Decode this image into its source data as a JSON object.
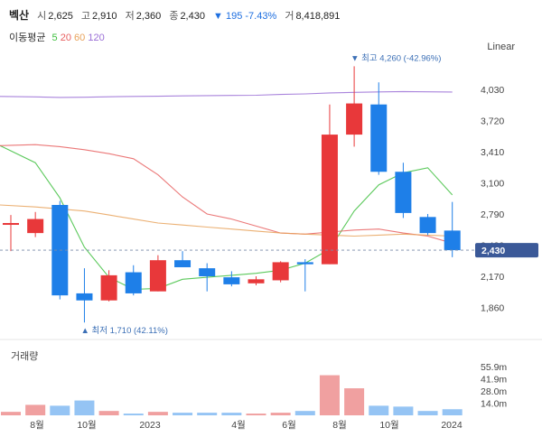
{
  "header": {
    "name": "벡산",
    "open_label": "시",
    "open": "2,625",
    "high_label": "고",
    "high": "2,910",
    "low_label": "저",
    "low": "2,360",
    "close_label": "종",
    "close": "2,430",
    "change": "▼ 195 -7.43%",
    "volume_label": "거",
    "volume": "8,418,891"
  },
  "ma_legend": {
    "title": "이동평균",
    "periods": [
      "5",
      "20",
      "60",
      "120"
    ],
    "colors": [
      "#3fbf3f",
      "#e86060",
      "#e8a25a",
      "#9a6fd6"
    ]
  },
  "scale": "Linear",
  "volume_title": "거래량",
  "chart_data": {
    "type": "candlestick",
    "colors": {
      "up": "#e8383a",
      "down": "#1e7fe8"
    },
    "price_axis": {
      "ticks": [
        1860,
        2170,
        2480,
        2790,
        3100,
        3410,
        3720,
        4030
      ],
      "labels": [
        "1,860",
        "2,170",
        "2,480",
        "2,790",
        "3,100",
        "3,410",
        "3,720",
        "4,030"
      ]
    },
    "current_price": {
      "value": 2430,
      "label": "2,430"
    },
    "annotations": {
      "max": {
        "value": 4260,
        "label": "▼ 최고 4,260 (-42.96%)"
      },
      "min": {
        "value": 1710,
        "label": "▲ 최저 1,710 (42.11%)"
      }
    },
    "x_labels": [
      "8월",
      "10월",
      "2023",
      "4월",
      "6월",
      "8월",
      "10월",
      "2024"
    ],
    "candles": [
      {
        "o": 2700,
        "h": 2780,
        "l": 2420,
        "c": 2700
      },
      {
        "o": 2600,
        "h": 2810,
        "l": 2560,
        "c": 2740
      },
      {
        "o": 2880,
        "h": 2920,
        "l": 1940,
        "c": 1980
      },
      {
        "o": 2000,
        "h": 2250,
        "l": 1710,
        "c": 1930
      },
      {
        "o": 1930,
        "h": 2230,
        "l": 1920,
        "c": 2180
      },
      {
        "o": 2210,
        "h": 2280,
        "l": 1980,
        "c": 2000
      },
      {
        "o": 2020,
        "h": 2380,
        "l": 2020,
        "c": 2330
      },
      {
        "o": 2330,
        "h": 2420,
        "l": 2260,
        "c": 2260
      },
      {
        "o": 2250,
        "h": 2300,
        "l": 2020,
        "c": 2170
      },
      {
        "o": 2160,
        "h": 2220,
        "l": 2070,
        "c": 2090
      },
      {
        "o": 2100,
        "h": 2170,
        "l": 2080,
        "c": 2140
      },
      {
        "o": 2130,
        "h": 2320,
        "l": 2110,
        "c": 2310
      },
      {
        "o": 2310,
        "h": 2340,
        "l": 2020,
        "c": 2290
      },
      {
        "o": 2290,
        "h": 3880,
        "l": 2290,
        "c": 3580
      },
      {
        "o": 3580,
        "h": 4260,
        "l": 3460,
        "c": 3890
      },
      {
        "o": 3880,
        "h": 4100,
        "l": 3180,
        "c": 3210
      },
      {
        "o": 3210,
        "h": 3300,
        "l": 2750,
        "c": 2800
      },
      {
        "o": 2760,
        "h": 2790,
        "l": 2580,
        "c": 2600
      },
      {
        "o": 2625,
        "h": 2910,
        "l": 2360,
        "c": 2430
      }
    ],
    "moving_averages": [
      {
        "period": "5",
        "color": "#3fbf3f",
        "values": [
          3470,
          3300,
          2950,
          2460,
          2160,
          2040,
          2050,
          2140,
          2160,
          2180,
          2200,
          2230,
          2300,
          2440,
          2820,
          3080,
          3200,
          3250,
          2980
        ]
      },
      {
        "period": "20",
        "color": "#e86060",
        "values": [
          3470,
          3480,
          3460,
          3430,
          3390,
          3340,
          3180,
          2960,
          2790,
          2740,
          2670,
          2600,
          2590,
          2610,
          2630,
          2640,
          2600,
          2570,
          2500
        ]
      },
      {
        "period": "60",
        "color": "#e8a25a",
        "values": [
          2880,
          2860,
          2840,
          2820,
          2780,
          2740,
          2700,
          2680,
          2660,
          2640,
          2620,
          2600,
          2590,
          2580,
          2570,
          2580,
          2590,
          2580,
          2570
        ]
      },
      {
        "period": "120",
        "color": "#9a6fd6",
        "values": [
          3960,
          3955,
          3950,
          3952,
          3956,
          3960,
          3962,
          3965,
          3968,
          3970,
          3972,
          3980,
          3985,
          3995,
          4000,
          4005,
          4008,
          4006,
          4004
        ]
      }
    ],
    "volume": {
      "axis_labels": [
        "55.9m",
        "41.9m",
        "28.0m",
        "14.0m"
      ],
      "axis_values": [
        55.9,
        41.9,
        28.0,
        14.0
      ],
      "values_m": [
        4,
        12,
        11,
        17,
        5,
        2,
        4,
        3,
        3,
        3,
        2,
        3,
        5,
        46,
        31,
        11,
        10,
        5,
        7
      ]
    }
  }
}
